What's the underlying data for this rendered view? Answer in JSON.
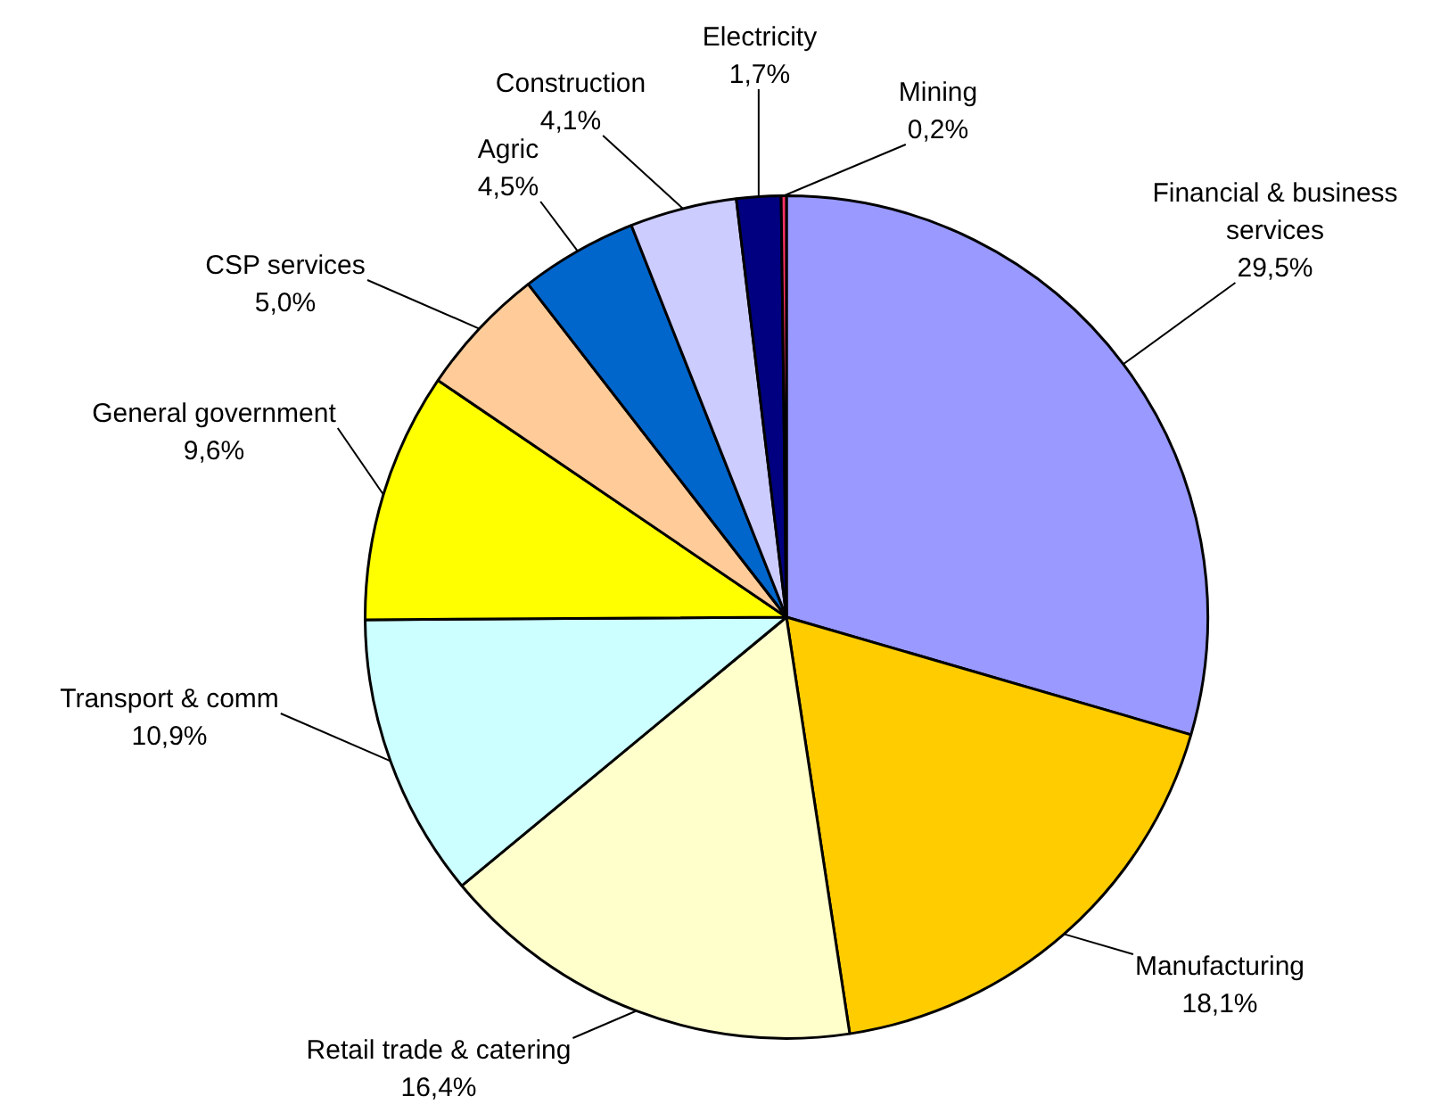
{
  "chart_data": {
    "type": "pie",
    "categories": [
      "Financial & business services",
      "Manufacturing",
      "Retail trade & catering",
      "Transport & comm",
      "General government",
      "CSP services",
      "Agric",
      "Construction",
      "Electricity",
      "Mining"
    ],
    "values": [
      29.5,
      18.1,
      16.4,
      10.9,
      9.6,
      5.0,
      4.5,
      4.1,
      1.7,
      0.2
    ],
    "value_labels": [
      "29,5%",
      "18,1%",
      "16,4%",
      "10,9%",
      "9,6%",
      "5,0%",
      "4,5%",
      "4,1%",
      "1,7%",
      "0,2%"
    ],
    "colors": [
      "#9999ff",
      "#ffcc00",
      "#ffffcc",
      "#ccffff",
      "#ffff00",
      "#ffcc99",
      "#0066cc",
      "#ccccff",
      "#000080",
      "#ff3366"
    ],
    "legend": false
  }
}
